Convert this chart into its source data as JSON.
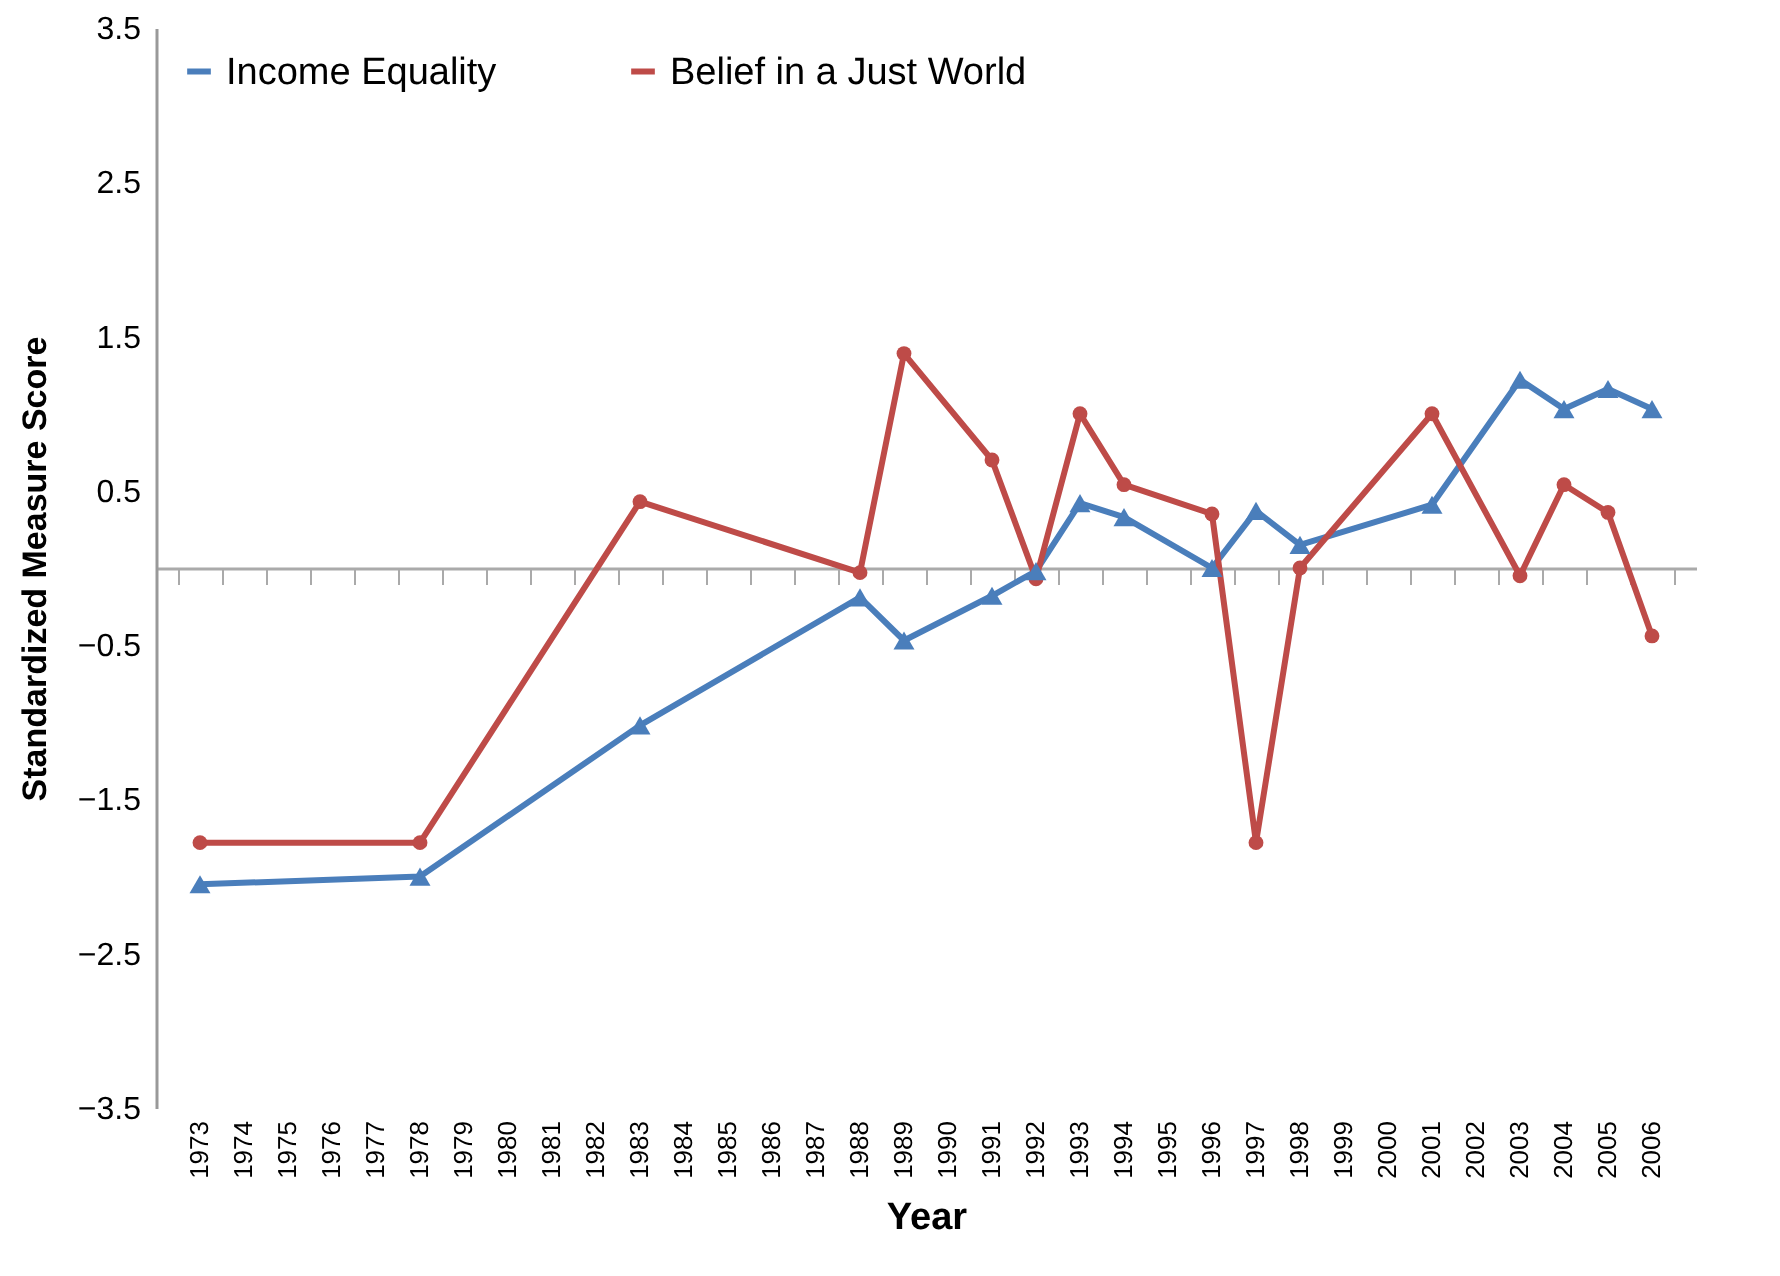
{
  "chart_data": {
    "type": "line",
    "xlabel": "Year",
    "ylabel": "Standardized Measure Score",
    "categories": [
      "1973",
      "1974",
      "1975",
      "1976",
      "1977",
      "1978",
      "1979",
      "1980",
      "1981",
      "1982",
      "1983",
      "1984",
      "1985",
      "1986",
      "1987",
      "1988",
      "1989",
      "1990",
      "1991",
      "1992",
      "1993",
      "1994",
      "1995",
      "1996",
      "1997",
      "1998",
      "1999",
      "2000",
      "2001",
      "2002",
      "2003",
      "2004",
      "2005",
      "2006"
    ],
    "series": [
      {
        "name": "Income Equality",
        "color": "#4a7ebb",
        "marker": "triangle",
        "values": [
          -2.05,
          null,
          null,
          null,
          null,
          -2.0,
          null,
          null,
          null,
          null,
          -1.02,
          null,
          null,
          null,
          null,
          -0.19,
          -0.47,
          null,
          -0.18,
          -0.02,
          0.42,
          0.33,
          null,
          0,
          0.37,
          0.15,
          null,
          null,
          0.41,
          null,
          1.22,
          1.03,
          1.16,
          1.03
        ]
      },
      {
        "name": "Belief in a Just World",
        "color": "#be4b48",
        "marker": "circle",
        "values": [
          -1.78,
          null,
          null,
          null,
          null,
          -1.78,
          null,
          null,
          null,
          null,
          0.43,
          null,
          null,
          null,
          null,
          -0.03,
          1.39,
          null,
          0.7,
          -0.07,
          1.0,
          0.54,
          null,
          0.35,
          -1.78,
          0,
          null,
          null,
          1.0,
          null,
          -0.05,
          0.54,
          0.36,
          -0.44
        ]
      }
    ],
    "ylim": [
      -3.5,
      3.5
    ],
    "yticks": [
      -3.5,
      -2.5,
      -1.5,
      -0.5,
      0.5,
      1.5,
      2.5,
      3.5
    ],
    "grid": false,
    "legend": "top left",
    "line_style": "solid"
  }
}
